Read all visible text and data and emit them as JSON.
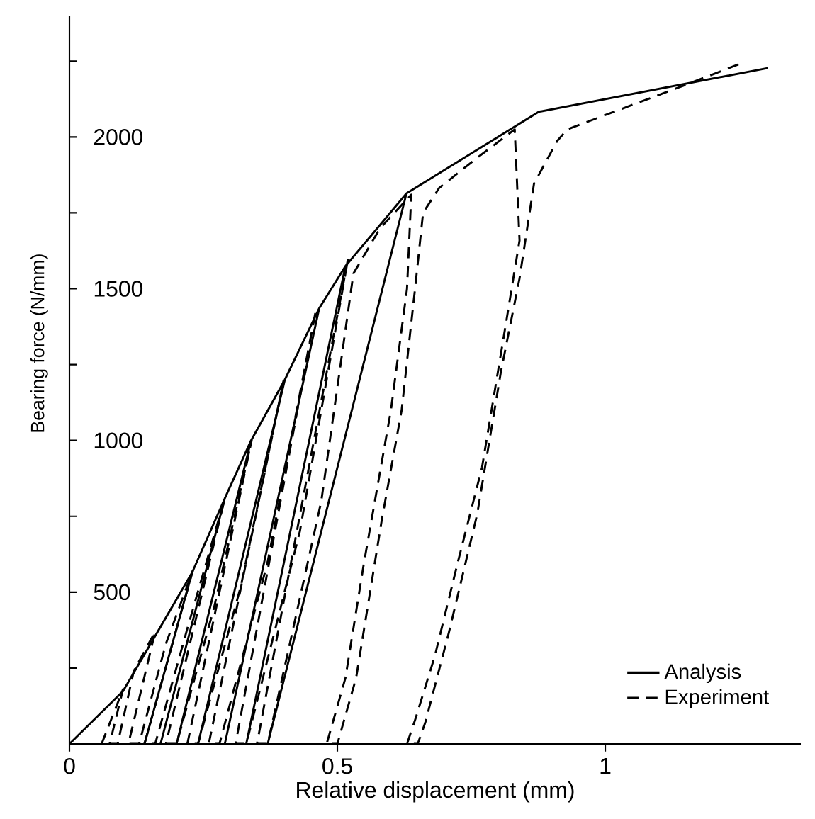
{
  "chart_data": {
    "type": "line",
    "xlabel": "Relative displacement (mm)",
    "ylabel": "Bearing force (N/mm)",
    "xlim": [
      0,
      1.365
    ],
    "ylim": [
      0,
      2400
    ],
    "xticks": [
      0,
      0.5,
      1
    ],
    "yticks": [
      {
        "value": 250,
        "label": null
      },
      500,
      {
        "value": 750,
        "label": null
      },
      1000,
      {
        "value": 1250,
        "label": null
      },
      1500,
      {
        "value": 1750,
        "label": null
      },
      2000,
      {
        "value": 2250,
        "label": null
      }
    ],
    "grid": false,
    "legend": "bottom right",
    "marker": "none",
    "series": [
      {
        "name": "Analysis",
        "color": "#000000",
        "line_style": "solid",
        "x": [
          0,
          0.1,
          0.163,
          0.229,
          0.14,
          0.229,
          0.29,
          0.17,
          0.29,
          0.339,
          0.2,
          0.339,
          0.402,
          0.24,
          0.402,
          0.466,
          0.29,
          0.466,
          0.515,
          0.33,
          0.515,
          0.629,
          0.37,
          0.629,
          0.876,
          1.303
        ],
        "values": [
          0,
          174,
          365,
          565,
          0,
          565,
          809,
          0,
          809,
          1000,
          0,
          1000,
          1200,
          0,
          1200,
          1435,
          0,
          1435,
          1574,
          0,
          1574,
          1814,
          0,
          1814,
          2083,
          2227
        ]
      },
      {
        "name": "Experiment",
        "color": "#000000",
        "line_style": "dashed",
        "x": [
          0.06,
          0.1,
          0.075,
          0.09,
          0.12,
          0.16,
          0.11,
          0.13,
          0.18,
          0.23,
          0.14,
          0.16,
          0.22,
          0.29,
          0.18,
          0.2,
          0.27,
          0.34,
          0.22,
          0.24,
          0.32,
          0.4,
          0.26,
          0.28,
          0.37,
          0.46,
          0.31,
          0.33,
          0.43,
          0.52,
          0.35,
          0.37,
          0.47,
          0.53,
          0.58,
          0.638,
          0.63,
          0.6,
          0.55,
          0.515,
          0.48,
          0.5,
          0.535,
          0.583,
          0.62,
          0.645,
          0.66,
          0.69,
          0.76,
          0.831,
          0.84,
          0.814,
          0.77,
          0.725,
          0.682,
          0.646,
          0.63,
          0.65,
          0.664,
          0.708,
          0.761,
          0.805,
          0.84,
          0.867,
          0.91,
          0.929,
          1.14,
          1.25
        ],
        "values": [
          0,
          180,
          0,
          0,
          240,
          370,
          0,
          0,
          330,
          570,
          0,
          0,
          380,
          810,
          0,
          0,
          450,
          1000,
          0,
          0,
          520,
          1200,
          0,
          0,
          600,
          1430,
          0,
          0,
          700,
          1600,
          0,
          0,
          800,
          1550,
          1700,
          1810,
          1500,
          1100,
          600,
          217,
          0,
          0,
          217,
          739,
          1100,
          1500,
          1750,
          1832,
          1930,
          2025,
          1659,
          1379,
          911,
          600,
          290,
          84,
          0,
          0,
          70,
          366,
          757,
          1224,
          1534,
          1846,
          1986,
          2025,
          2165,
          2240
        ]
      }
    ]
  }
}
